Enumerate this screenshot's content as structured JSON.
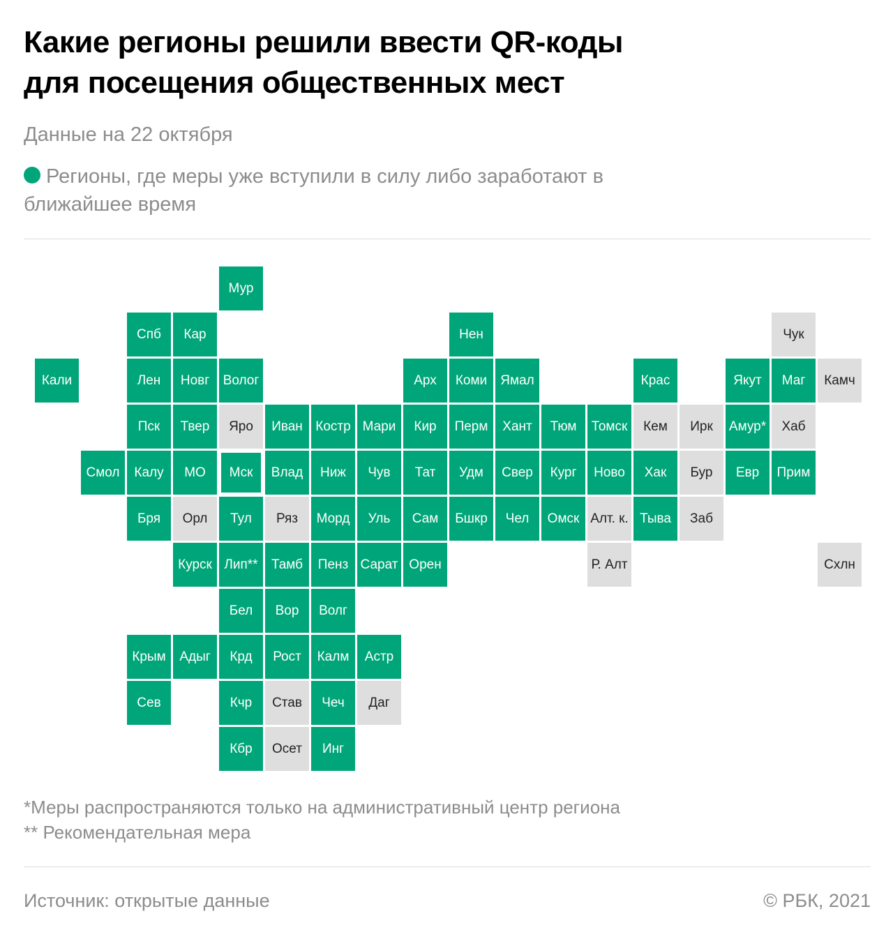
{
  "title_line1": "Какие регионы решили ввести QR-коды",
  "title_line2": "для посещения общественных мест",
  "subtitle": "Данные на 22 октября",
  "legend": {
    "text": "Регионы, где меры уже вступили в силу либо заработают в ближайшее время"
  },
  "colors": {
    "active": "#00a679",
    "inactive": "#dedede",
    "active_text": "#ffffff",
    "inactive_text": "#222222",
    "muted_text": "#8c8c8c"
  },
  "map": {
    "regions": [
      {
        "label": "Мур",
        "col": 4,
        "row": 0,
        "status": "active"
      },
      {
        "label": "Спб",
        "col": 2,
        "row": 1,
        "status": "active"
      },
      {
        "label": "Кар",
        "col": 3,
        "row": 1,
        "status": "active"
      },
      {
        "label": "Нен",
        "col": 9,
        "row": 1,
        "status": "active"
      },
      {
        "label": "Чук",
        "col": 16,
        "row": 1,
        "status": "inactive"
      },
      {
        "label": "Кали",
        "col": 0,
        "row": 2,
        "status": "active"
      },
      {
        "label": "Лен",
        "col": 2,
        "row": 2,
        "status": "active"
      },
      {
        "label": "Новг",
        "col": 3,
        "row": 2,
        "status": "active"
      },
      {
        "label": "Волог",
        "col": 4,
        "row": 2,
        "status": "active"
      },
      {
        "label": "Арх",
        "col": 8,
        "row": 2,
        "status": "active"
      },
      {
        "label": "Коми",
        "col": 9,
        "row": 2,
        "status": "active"
      },
      {
        "label": "Ямал",
        "col": 10,
        "row": 2,
        "status": "active"
      },
      {
        "label": "Крас",
        "col": 13,
        "row": 2,
        "status": "active"
      },
      {
        "label": "Якут",
        "col": 15,
        "row": 2,
        "status": "active"
      },
      {
        "label": "Маг",
        "col": 16,
        "row": 2,
        "status": "active"
      },
      {
        "label": "Камч",
        "col": 17,
        "row": 2,
        "status": "inactive"
      },
      {
        "label": "Пск",
        "col": 2,
        "row": 3,
        "status": "active"
      },
      {
        "label": "Твер",
        "col": 3,
        "row": 3,
        "status": "active"
      },
      {
        "label": "Яро",
        "col": 4,
        "row": 3,
        "status": "inactive"
      },
      {
        "label": "Иван",
        "col": 5,
        "row": 3,
        "status": "active"
      },
      {
        "label": "Костр",
        "col": 6,
        "row": 3,
        "status": "active"
      },
      {
        "label": "Мари",
        "col": 7,
        "row": 3,
        "status": "active"
      },
      {
        "label": "Кир",
        "col": 8,
        "row": 3,
        "status": "active"
      },
      {
        "label": "Перм",
        "col": 9,
        "row": 3,
        "status": "active"
      },
      {
        "label": "Хант",
        "col": 10,
        "row": 3,
        "status": "active"
      },
      {
        "label": "Тюм",
        "col": 11,
        "row": 3,
        "status": "active"
      },
      {
        "label": "Томск",
        "col": 12,
        "row": 3,
        "status": "active"
      },
      {
        "label": "Кем",
        "col": 13,
        "row": 3,
        "status": "inactive"
      },
      {
        "label": "Ирк",
        "col": 14,
        "row": 3,
        "status": "inactive"
      },
      {
        "label": "Амур*",
        "col": 15,
        "row": 3,
        "status": "active"
      },
      {
        "label": "Хаб",
        "col": 16,
        "row": 3,
        "status": "inactive"
      },
      {
        "label": "Смол",
        "col": 1,
        "row": 4,
        "status": "active"
      },
      {
        "label": "Калу",
        "col": 2,
        "row": 4,
        "status": "active"
      },
      {
        "label": "МО",
        "col": 3,
        "row": 4,
        "status": "active"
      },
      {
        "label": "Мск",
        "col": 4,
        "row": 4,
        "status": "active",
        "highlight": true
      },
      {
        "label": "Влад",
        "col": 5,
        "row": 4,
        "status": "active"
      },
      {
        "label": "Ниж",
        "col": 6,
        "row": 4,
        "status": "active"
      },
      {
        "label": "Чув",
        "col": 7,
        "row": 4,
        "status": "active"
      },
      {
        "label": "Тат",
        "col": 8,
        "row": 4,
        "status": "active"
      },
      {
        "label": "Удм",
        "col": 9,
        "row": 4,
        "status": "active"
      },
      {
        "label": "Свер",
        "col": 10,
        "row": 4,
        "status": "active"
      },
      {
        "label": "Кург",
        "col": 11,
        "row": 4,
        "status": "active"
      },
      {
        "label": "Ново",
        "col": 12,
        "row": 4,
        "status": "active"
      },
      {
        "label": "Хак",
        "col": 13,
        "row": 4,
        "status": "active"
      },
      {
        "label": "Бур",
        "col": 14,
        "row": 4,
        "status": "inactive"
      },
      {
        "label": "Евр",
        "col": 15,
        "row": 4,
        "status": "active"
      },
      {
        "label": "Прим",
        "col": 16,
        "row": 4,
        "status": "active"
      },
      {
        "label": "Бря",
        "col": 2,
        "row": 5,
        "status": "active"
      },
      {
        "label": "Орл",
        "col": 3,
        "row": 5,
        "status": "inactive"
      },
      {
        "label": "Тул",
        "col": 4,
        "row": 5,
        "status": "active"
      },
      {
        "label": "Ряз",
        "col": 5,
        "row": 5,
        "status": "inactive"
      },
      {
        "label": "Морд",
        "col": 6,
        "row": 5,
        "status": "active"
      },
      {
        "label": "Уль",
        "col": 7,
        "row": 5,
        "status": "active"
      },
      {
        "label": "Сам",
        "col": 8,
        "row": 5,
        "status": "active"
      },
      {
        "label": "Бшкр",
        "col": 9,
        "row": 5,
        "status": "active"
      },
      {
        "label": "Чел",
        "col": 10,
        "row": 5,
        "status": "active"
      },
      {
        "label": "Омск",
        "col": 11,
        "row": 5,
        "status": "active"
      },
      {
        "label": "Алт. к.",
        "col": 12,
        "row": 5,
        "status": "inactive"
      },
      {
        "label": "Тыва",
        "col": 13,
        "row": 5,
        "status": "active"
      },
      {
        "label": "Заб",
        "col": 14,
        "row": 5,
        "status": "inactive"
      },
      {
        "label": "Курск",
        "col": 3,
        "row": 6,
        "status": "active"
      },
      {
        "label": "Лип**",
        "col": 4,
        "row": 6,
        "status": "active"
      },
      {
        "label": "Тамб",
        "col": 5,
        "row": 6,
        "status": "active"
      },
      {
        "label": "Пенз",
        "col": 6,
        "row": 6,
        "status": "active"
      },
      {
        "label": "Сарат",
        "col": 7,
        "row": 6,
        "status": "active"
      },
      {
        "label": "Орен",
        "col": 8,
        "row": 6,
        "status": "active"
      },
      {
        "label": "Р. Алт",
        "col": 12,
        "row": 6,
        "status": "inactive"
      },
      {
        "label": "Схлн",
        "col": 17,
        "row": 6,
        "status": "inactive"
      },
      {
        "label": "Бел",
        "col": 4,
        "row": 7,
        "status": "active"
      },
      {
        "label": "Вор",
        "col": 5,
        "row": 7,
        "status": "active"
      },
      {
        "label": "Волг",
        "col": 6,
        "row": 7,
        "status": "active"
      },
      {
        "label": "Крым",
        "col": 2,
        "row": 8,
        "status": "active"
      },
      {
        "label": "Адыг",
        "col": 3,
        "row": 8,
        "status": "active"
      },
      {
        "label": "Крд",
        "col": 4,
        "row": 8,
        "status": "active"
      },
      {
        "label": "Рост",
        "col": 5,
        "row": 8,
        "status": "active"
      },
      {
        "label": "Калм",
        "col": 6,
        "row": 8,
        "status": "active"
      },
      {
        "label": "Астр",
        "col": 7,
        "row": 8,
        "status": "active"
      },
      {
        "label": "Сев",
        "col": 2,
        "row": 9,
        "status": "active"
      },
      {
        "label": "Кчр",
        "col": 4,
        "row": 9,
        "status": "active"
      },
      {
        "label": "Став",
        "col": 5,
        "row": 9,
        "status": "inactive"
      },
      {
        "label": "Чеч",
        "col": 6,
        "row": 9,
        "status": "active"
      },
      {
        "label": "Даг",
        "col": 7,
        "row": 9,
        "status": "inactive"
      },
      {
        "label": "Кбр",
        "col": 4,
        "row": 10,
        "status": "active"
      },
      {
        "label": "Осет",
        "col": 5,
        "row": 10,
        "status": "inactive"
      },
      {
        "label": "Инг",
        "col": 6,
        "row": 10,
        "status": "active"
      }
    ]
  },
  "notes": {
    "line1": "*Меры распространяются только на административный центр региона",
    "line2": "** Рекомендательная мера"
  },
  "footer": {
    "source": "Источник:  открытые данные",
    "copyright": "©  РБК, 2021"
  }
}
